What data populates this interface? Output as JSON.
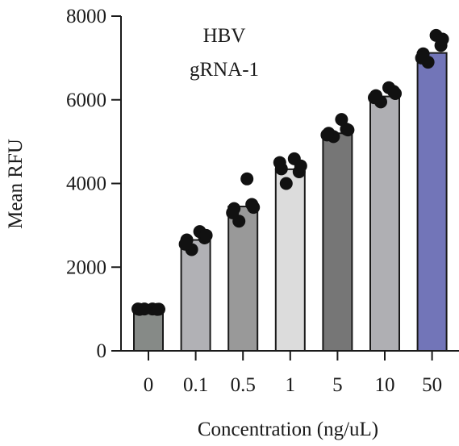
{
  "chart_data": {
    "type": "bar",
    "title": [
      "HBV",
      "gRNA-1"
    ],
    "xlabel": "Concentration (ng/uL)",
    "ylabel": "Mean RFU",
    "ylim": [
      0,
      8000
    ],
    "yticks": [
      0,
      2000,
      4000,
      6000,
      8000
    ],
    "categories": [
      "0",
      "0.1",
      "0.5",
      "1",
      "5",
      "10",
      "50"
    ],
    "values": [
      990,
      2650,
      3450,
      4340,
      5200,
      6080,
      7120
    ],
    "bar_colors": [
      "#868a87",
      "#b1b1b5",
      "#999999",
      "#dcdcdc",
      "#767676",
      "#afafb3",
      "#7275b8"
    ],
    "points": [
      [
        990,
        1000,
        1000,
        990,
        1000,
        995
      ],
      [
        2650,
        2850,
        2420,
        2700,
        2550,
        2760
      ],
      [
        3400,
        4110,
        3100,
        3500,
        3300,
        3430
      ],
      [
        4350,
        4590,
        4000,
        4280,
        4500,
        4420
      ],
      [
        5200,
        5530,
        5120,
        5300,
        5160,
        5280
      ],
      [
        6100,
        6290,
        5950,
        6200,
        6050,
        6150
      ],
      [
        7100,
        7540,
        6900,
        7300,
        7000,
        7450
      ]
    ],
    "grid": false,
    "error_bars": false
  }
}
